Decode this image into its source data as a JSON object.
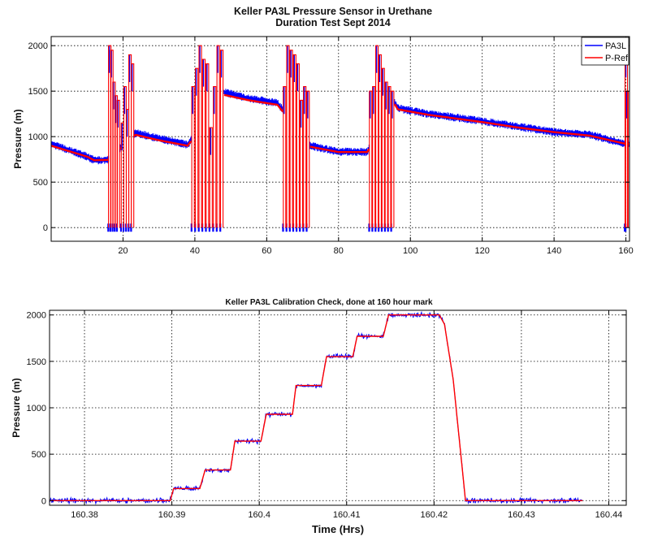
{
  "chart_data": [
    {
      "type": "line",
      "title": "Keller PA3L Pressure Sensor in Urethane",
      "subtitle": "Duration Test Sept 2014",
      "xlabel": "",
      "ylabel": "Pressure (m)",
      "xlim": [
        0,
        161
      ],
      "ylim": [
        -150,
        2100
      ],
      "xticks": [
        20,
        40,
        60,
        80,
        100,
        120,
        140,
        160
      ],
      "yticks": [
        0,
        500,
        1000,
        1500,
        2000
      ],
      "grid": true,
      "legend": {
        "placement": "top-right",
        "entries": [
          "PA3L",
          "P-Ref"
        ]
      },
      "colors": {
        "PA3L": "#0000ff",
        "P-Ref": "#ff0000"
      },
      "series": [
        {
          "name": "PA3L",
          "noise": 45,
          "x": [
            0,
            10,
            12,
            15.8,
            23.5,
            30,
            38,
            48,
            55,
            63,
            72,
            80,
            88,
            95,
            96.5,
            105,
            120,
            130,
            140,
            150,
            160
          ],
          "y": [
            920,
            780,
            740,
            745,
            1040,
            980,
            910,
            1490,
            1420,
            1370,
            900,
            835,
            830,
            1420,
            1310,
            1250,
            1170,
            1110,
            1050,
            1020,
            920
          ]
        },
        {
          "name": "P-Ref",
          "noise": 0,
          "x": [
            0,
            10,
            12,
            15.8,
            23.5,
            30,
            38,
            48,
            55,
            63,
            72,
            80,
            88,
            95,
            96.5,
            105,
            120,
            130,
            140,
            150,
            160
          ],
          "y": [
            900,
            780,
            740,
            745,
            1020,
            960,
            900,
            1460,
            1400,
            1350,
            890,
            830,
            830,
            1400,
            1300,
            1240,
            1160,
            1100,
            1050,
            1010,
            920
          ]
        }
      ],
      "calibration_bursts": [
        {
          "start": 16,
          "end": 19,
          "peaks": [
            2000,
            1950,
            1600,
            1450,
            1400
          ]
        },
        {
          "start": 19.5,
          "end": 23,
          "peaks": [
            1150,
            1550,
            1300,
            1900,
            1800
          ]
        },
        {
          "start": 39,
          "end": 48,
          "peaks": [
            1550,
            1750,
            2000,
            1850,
            1800,
            1100,
            1550,
            2000,
            1950
          ]
        },
        {
          "start": 64.5,
          "end": 72,
          "peaks": [
            1550,
            2000,
            1950,
            1900,
            1800,
            1400,
            1550,
            1500
          ]
        },
        {
          "start": 88.5,
          "end": 95.5,
          "peaks": [
            1500,
            1550,
            2000,
            1900,
            1750,
            1600,
            1550,
            1500
          ]
        },
        {
          "start": 160,
          "end": 160.4,
          "peaks": [
            1950,
            1500
          ]
        }
      ]
    },
    {
      "type": "line",
      "title": "Keller PA3L Calibration Check, done at 160 hour mark",
      "xlabel": "Time (Hrs)",
      "ylabel": "Pressure (m)",
      "xlim": [
        160.376,
        160.442
      ],
      "ylim": [
        -50,
        2050
      ],
      "xticks": [
        160.38,
        160.39,
        160.4,
        160.41,
        160.42,
        160.43,
        160.44
      ],
      "xticklabels": [
        "160.38",
        "160.39",
        "160.4",
        "160.41",
        "160.42",
        "160.43",
        "160.44"
      ],
      "yticks": [
        0,
        500,
        1000,
        1500,
        2000
      ],
      "grid": true,
      "colors": {
        "PA3L": "#0000ff",
        "P-Ref": "#ff0000"
      },
      "series": [
        {
          "name": "PA3L",
          "noise": 22,
          "x": [
            160.376,
            160.3898,
            160.3902,
            160.3932,
            160.3938,
            160.3967,
            160.3972,
            160.4002,
            160.4008,
            160.4038,
            160.4042,
            160.4071,
            160.4077,
            160.4107,
            160.4112,
            160.4142,
            160.4148,
            160.4206,
            160.4212,
            160.4222,
            160.4236,
            160.437
          ],
          "y": [
            0,
            0,
            130,
            130,
            330,
            330,
            640,
            640,
            930,
            930,
            1240,
            1240,
            1550,
            1550,
            1770,
            1770,
            2000,
            2000,
            1900,
            1300,
            0,
            0
          ]
        },
        {
          "name": "P-Ref",
          "noise": 0,
          "x": [
            160.376,
            160.3898,
            160.3902,
            160.3932,
            160.3938,
            160.3967,
            160.3972,
            160.4002,
            160.4008,
            160.4038,
            160.4042,
            160.4071,
            160.4077,
            160.4107,
            160.4112,
            160.4142,
            160.4148,
            160.4206,
            160.4212,
            160.4222,
            160.4236,
            160.437
          ],
          "y": [
            0,
            0,
            130,
            130,
            330,
            330,
            640,
            640,
            930,
            930,
            1240,
            1240,
            1550,
            1550,
            1770,
            1770,
            2000,
            2000,
            1900,
            1300,
            0,
            0
          ]
        }
      ]
    }
  ]
}
